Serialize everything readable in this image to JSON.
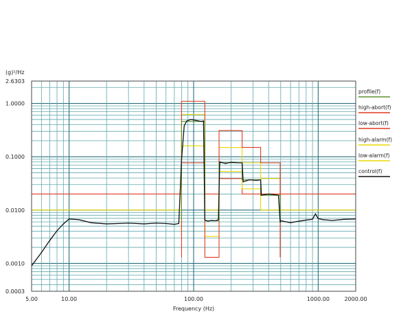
{
  "chart_data": {
    "type": "line",
    "title": "",
    "xlabel": "Frequency (Hz)",
    "ylabel": "(g)²/Hz",
    "x_scale": "log",
    "y_scale": "log",
    "xlim": [
      5,
      2000
    ],
    "ylim": [
      0.0003,
      2.6303
    ],
    "grid": true,
    "legend_position": "right",
    "x_ticks": [
      {
        "value": 5,
        "label": "5.00"
      },
      {
        "value": 10,
        "label": "10.00"
      },
      {
        "value": 100,
        "label": "100.00"
      },
      {
        "value": 1000,
        "label": "1000.00"
      },
      {
        "value": 2000,
        "label": "2000.00"
      }
    ],
    "y_ticks": [
      {
        "value": 2.6303,
        "label": "2.6303"
      },
      {
        "value": 1.0,
        "label": "1.0000"
      },
      {
        "value": 0.1,
        "label": "0.1000"
      },
      {
        "value": 0.01,
        "label": "0.0100"
      },
      {
        "value": 0.001,
        "label": "0.0010"
      },
      {
        "value": 0.0003,
        "label": "0.0003"
      }
    ],
    "series": [
      {
        "name": "profile(f)",
        "color": "#5a8f2a",
        "x": [
          80,
          80,
          123,
          123,
          160,
          160,
          245,
          245,
          345,
          345,
          495,
          495
        ],
        "y": [
          0.0063,
          0.46,
          0.46,
          0.0063,
          0.0063,
          0.077,
          0.077,
          0.037,
          0.037,
          0.019,
          0.019,
          0.0063
        ]
      },
      {
        "name": "high-abort(f)",
        "color": "#e03a1e",
        "x": [
          80,
          80,
          123,
          123,
          160,
          160,
          245,
          245,
          345,
          345,
          495,
          495
        ],
        "y": [
          0.0013,
          1.1,
          1.1,
          0.0013,
          0.0013,
          0.31,
          0.31,
          0.15,
          0.15,
          0.077,
          0.077,
          0.0013
        ]
      },
      {
        "name": "low-abort(f)",
        "color": "#e03a1e",
        "x": [
          5,
          80,
          80,
          123,
          123,
          160,
          160,
          245,
          245,
          345,
          345,
          495,
          495,
          2000
        ],
        "y": [
          0.02,
          0.02,
          0.077,
          0.077,
          0.02,
          0.02,
          0.039,
          0.039,
          0.02,
          0.02,
          0.02,
          0.02,
          0.02,
          0.02
        ]
      },
      {
        "name": "high-alarm(f)",
        "color": "#e8d800",
        "x": [
          80,
          80,
          123,
          123,
          160,
          160,
          245,
          245,
          345,
          345,
          495,
          495
        ],
        "y": [
          0.0032,
          0.62,
          0.62,
          0.0032,
          0.0032,
          0.15,
          0.15,
          0.077,
          0.077,
          0.039,
          0.039,
          0.0032
        ]
      },
      {
        "name": "low-alarm(f)",
        "color": "#e8d800",
        "x": [
          5,
          80,
          80,
          123,
          123,
          160,
          160,
          245,
          245,
          345,
          345,
          495,
          495,
          2000
        ],
        "y": [
          0.01,
          0.01,
          0.16,
          0.16,
          0.01,
          0.01,
          0.053,
          0.053,
          0.025,
          0.025,
          0.01,
          0.01,
          0.01,
          0.01
        ]
      },
      {
        "name": "control(f)",
        "color": "#111111",
        "x": [
          5,
          6,
          7,
          8,
          9,
          10,
          12,
          15,
          20,
          25,
          30,
          40,
          50,
          60,
          70,
          76,
          80,
          84,
          88,
          95,
          105,
          115,
          120,
          123,
          130,
          140,
          150,
          158,
          162,
          180,
          200,
          230,
          245,
          250,
          280,
          320,
          345,
          350,
          400,
          480,
          495,
          500,
          600,
          700,
          800,
          900,
          950,
          1000,
          1100,
          1300,
          1600,
          2000
        ],
        "y": [
          0.0009,
          0.0016,
          0.0027,
          0.0041,
          0.0055,
          0.0068,
          0.0066,
          0.0058,
          0.0055,
          0.0056,
          0.0057,
          0.0055,
          0.0057,
          0.0056,
          0.0054,
          0.0056,
          0.09,
          0.38,
          0.47,
          0.5,
          0.48,
          0.46,
          0.47,
          0.0065,
          0.0062,
          0.0064,
          0.0063,
          0.0066,
          0.08,
          0.075,
          0.079,
          0.077,
          0.077,
          0.034,
          0.037,
          0.036,
          0.037,
          0.019,
          0.02,
          0.019,
          0.0059,
          0.0063,
          0.0058,
          0.0062,
          0.0065,
          0.0067,
          0.0085,
          0.0069,
          0.0066,
          0.0064,
          0.0067,
          0.0068
        ]
      }
    ]
  }
}
